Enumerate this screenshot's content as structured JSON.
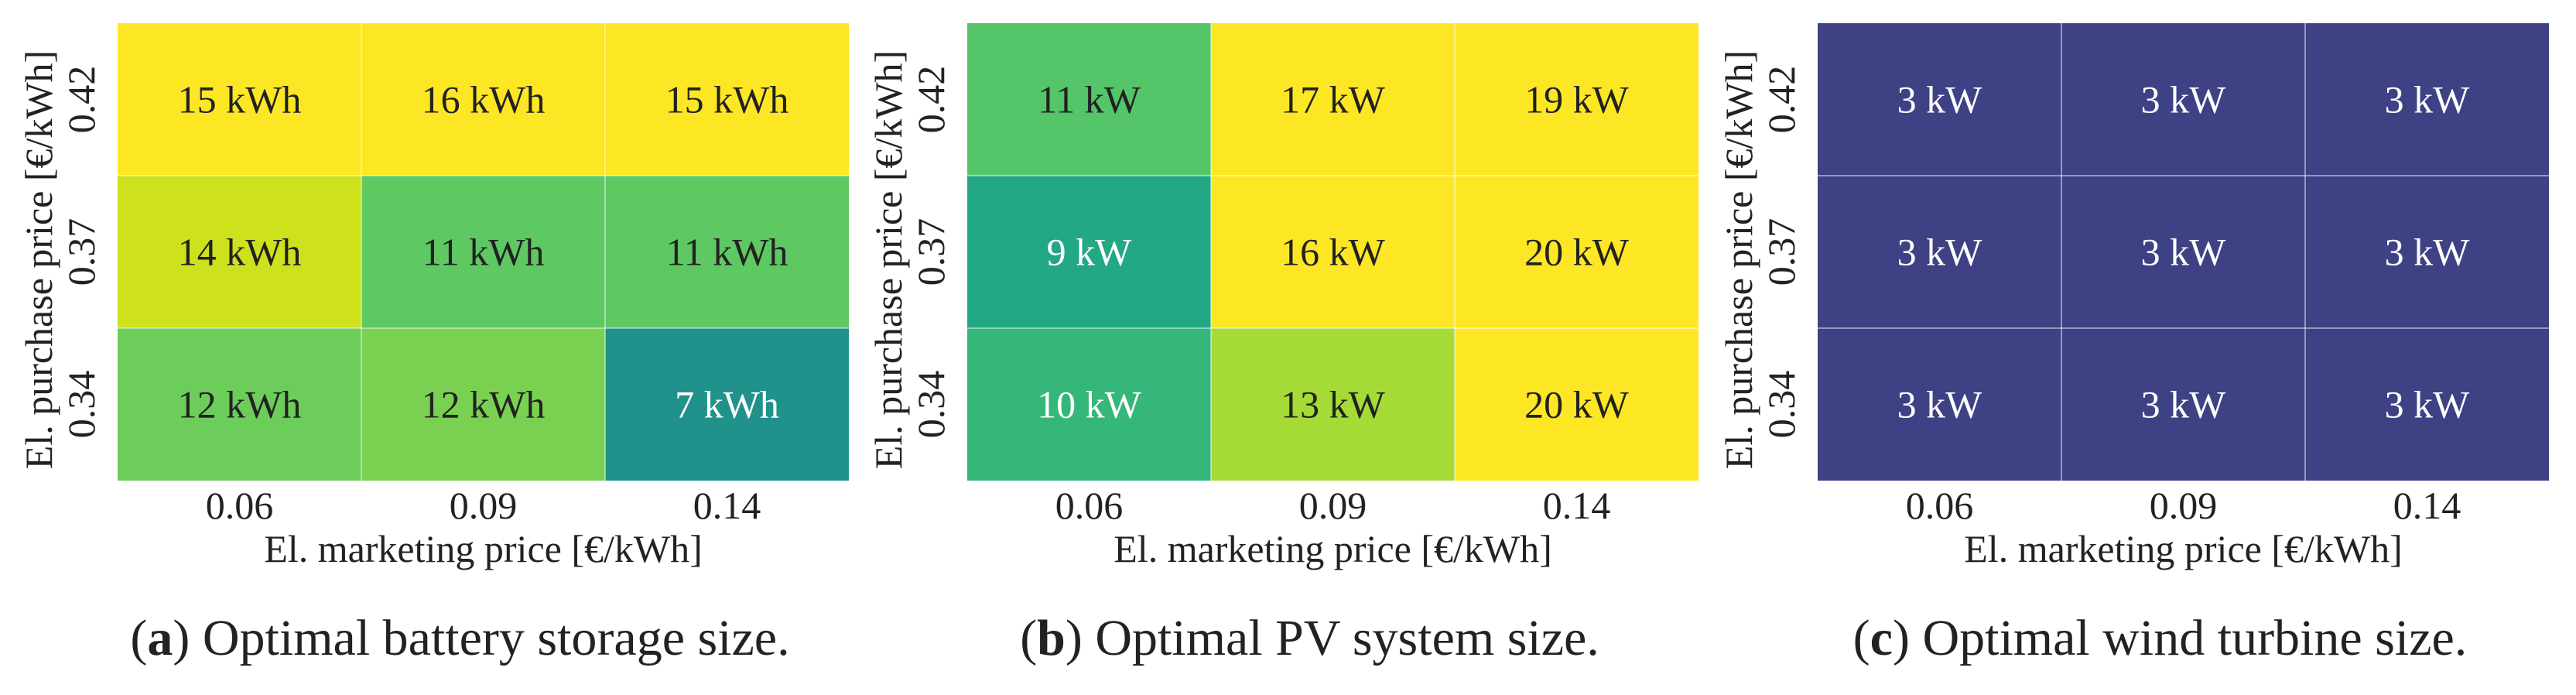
{
  "figure": {
    "panels": [
      {
        "label": "a",
        "caption": " Optimal battery storage size.",
        "unit": "kWh"
      },
      {
        "label": "b",
        "caption": " Optimal PV system size.",
        "unit": "kW"
      },
      {
        "label": "c",
        "caption": " Optimal wind turbine size.",
        "unit": "kW"
      }
    ]
  },
  "chart_data": [
    {
      "type": "heatmap",
      "title": "Optimal battery storage size",
      "xlabel": "El. marketing price [€/kWh]",
      "ylabel": "El. purchase price [€/kWh]",
      "x": [
        "0.06",
        "0.09",
        "0.14"
      ],
      "y": [
        "0.42",
        "0.37",
        "0.34"
      ],
      "unit": "kWh",
      "values": [
        [
          15,
          16,
          15
        ],
        [
          14,
          11,
          11
        ],
        [
          12,
          12,
          7
        ]
      ],
      "cell_labels": [
        [
          "15 kWh",
          "16 kWh",
          "15 kWh"
        ],
        [
          "14 kWh",
          "11 kWh",
          "11 kWh"
        ],
        [
          "12 kWh",
          "12 kWh",
          "7 kWh"
        ]
      ],
      "colors": [
        [
          "#fde725",
          "#fde725",
          "#fde725"
        ],
        [
          "#cde11d",
          "#5ec962",
          "#5ec962"
        ],
        [
          "#6ccd5a",
          "#7ad151",
          "#21918c"
        ]
      ],
      "text_colors": [
        [
          "#222222",
          "#222222",
          "#222222"
        ],
        [
          "#222222",
          "#222222",
          "#222222"
        ],
        [
          "#222222",
          "#222222",
          "#ffffff"
        ]
      ]
    },
    {
      "type": "heatmap",
      "title": "Optimal PV system size",
      "xlabel": "El. marketing price [€/kWh]",
      "ylabel": "El. purchase price [€/kWh]",
      "x": [
        "0.06",
        "0.09",
        "0.14"
      ],
      "y": [
        "0.42",
        "0.37",
        "0.34"
      ],
      "unit": "kW",
      "values": [
        [
          11,
          17,
          19
        ],
        [
          9,
          16,
          20
        ],
        [
          10,
          13,
          20
        ]
      ],
      "cell_labels": [
        [
          "11 kW",
          "17 kW",
          "19 kW"
        ],
        [
          "9 kW",
          "16 kW",
          "20 kW"
        ],
        [
          "10 kW",
          "13 kW",
          "20 kW"
        ]
      ],
      "colors": [
        [
          "#54c568",
          "#fde725",
          "#fde725"
        ],
        [
          "#22a884",
          "#fde725",
          "#fde725"
        ],
        [
          "#35b779",
          "#a5db36",
          "#fde725"
        ]
      ],
      "text_colors": [
        [
          "#222222",
          "#222222",
          "#222222"
        ],
        [
          "#ffffff",
          "#222222",
          "#222222"
        ],
        [
          "#ffffff",
          "#222222",
          "#222222"
        ]
      ]
    },
    {
      "type": "heatmap",
      "title": "Optimal wind turbine size",
      "xlabel": "El. marketing price [€/kWh]",
      "ylabel": "El. purchase price [€/kWh]",
      "x": [
        "0.06",
        "0.09",
        "0.14"
      ],
      "y": [
        "0.42",
        "0.37",
        "0.34"
      ],
      "unit": "kW",
      "values": [
        [
          3,
          3,
          3
        ],
        [
          3,
          3,
          3
        ],
        [
          3,
          3,
          3
        ]
      ],
      "cell_labels": [
        [
          "3 kW",
          "3 kW",
          "3 kW"
        ],
        [
          "3 kW",
          "3 kW",
          "3 kW"
        ],
        [
          "3 kW",
          "3 kW",
          "3 kW"
        ]
      ],
      "colors": [
        [
          "#3f4185",
          "#3f4185",
          "#3f4185"
        ],
        [
          "#3f4185",
          "#3f4185",
          "#3f4185"
        ],
        [
          "#3f4185",
          "#3f4185",
          "#3f4185"
        ]
      ],
      "text_colors": [
        [
          "#ffffff",
          "#ffffff",
          "#ffffff"
        ],
        [
          "#ffffff",
          "#ffffff",
          "#ffffff"
        ],
        [
          "#ffffff",
          "#ffffff",
          "#ffffff"
        ]
      ]
    }
  ]
}
